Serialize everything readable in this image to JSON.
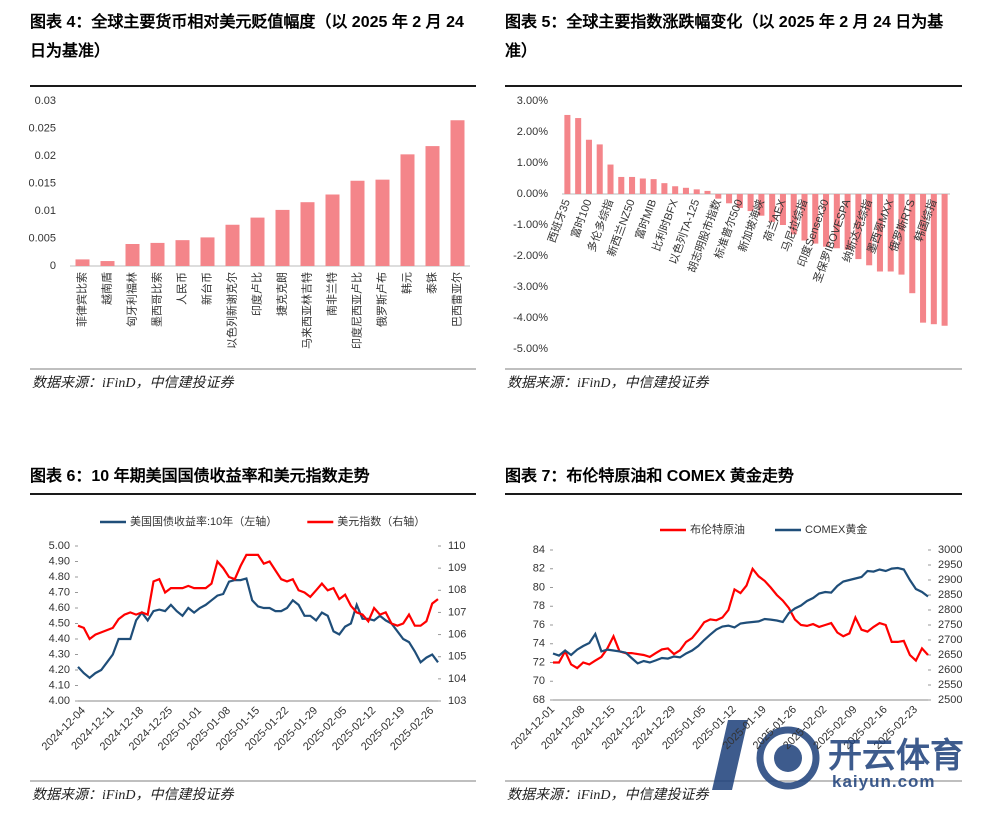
{
  "chart_data": [
    {
      "type": "bar",
      "title": "图表 4：全球主要货币相对美元贬值幅度（以 2025 年 2 月 24 日为基准）",
      "source": "数据来源：iFinD，中信建投证券",
      "categories": [
        "菲律宾比索",
        "越南盾",
        "匈牙利福林",
        "墨西哥比索",
        "人民币",
        "新台币",
        "以色列新谢克尔",
        "印度卢比",
        "捷克克朗",
        "马来西亚林吉特",
        "南非兰特",
        "印度尼西亚卢比",
        "俄罗斯卢布",
        "韩元",
        "泰铢",
        "巴西雷亚尔"
      ],
      "values": [
        0.0012,
        0.0009,
        0.004,
        0.0042,
        0.0047,
        0.0052,
        0.0075,
        0.0088,
        0.0102,
        0.0116,
        0.013,
        0.0155,
        0.0157,
        0.0203,
        0.0218,
        0.0265
      ],
      "color": "#f4858a",
      "ylim": [
        0,
        0.03
      ],
      "yticks": [
        0,
        0.005,
        0.01,
        0.015,
        0.02,
        0.025,
        0.03
      ]
    },
    {
      "type": "bar",
      "title": "图表 5：全球主要指数涨跌幅变化（以 2025 年 2 月 24 日为基准）",
      "source": "数据来源：iFinD，中信建投证券",
      "categories": [
        "西班牙35",
        null,
        "富时100",
        null,
        "多伦多综指",
        null,
        "新西兰NZ50",
        null,
        "富时MIB",
        null,
        "比利时BFX",
        null,
        "以色列TA-125",
        null,
        "胡志明股市指数",
        null,
        "标准普尔500",
        null,
        "新加坡海峡",
        null,
        "荷兰AEX",
        null,
        "马尼拉综指",
        null,
        "印度Sensex30",
        null,
        "圣保罗IBOVESPA",
        null,
        "纳斯达克综指",
        null,
        "墨西哥MXX",
        null,
        "俄罗斯RTS",
        null,
        "韩国综指",
        null
      ],
      "values": [
        2.55,
        2.45,
        1.75,
        1.6,
        0.95,
        0.55,
        0.55,
        0.5,
        0.48,
        0.35,
        0.25,
        0.2,
        0.15,
        0.1,
        -0.15,
        -0.3,
        -0.45,
        -0.55,
        -0.7,
        -0.9,
        -1.0,
        -1.3,
        -1.5,
        -1.6,
        -1.7,
        -1.75,
        -1.8,
        -2.1,
        -2.3,
        -2.5,
        -2.5,
        -2.6,
        -3.2,
        -4.15,
        -4.2,
        -4.25
      ],
      "color": "#f4858a",
      "ylim": [
        -5,
        3
      ],
      "yticks": [
        {
          "value": -5,
          "label": "-5.00%"
        },
        {
          "value": -4,
          "label": "-4.00%"
        },
        {
          "value": -3,
          "label": "-3.00%"
        },
        {
          "value": -2,
          "label": "-2.00%"
        },
        {
          "value": -1,
          "label": "-1.00%"
        },
        {
          "value": 0,
          "label": "0.00%"
        },
        {
          "value": 1,
          "label": "1.00%"
        },
        {
          "value": 2,
          "label": "2.00%"
        },
        {
          "value": 3,
          "label": "3.00%"
        }
      ]
    },
    {
      "type": "line",
      "title": "图表 6：10 年期美国国债收益率和美元指数走势",
      "source": "数据来源：iFinD，中信建投证券",
      "categories": [
        null,
        "2024-12-04",
        null,
        null,
        null,
        null,
        "2024-12-11",
        null,
        null,
        null,
        null,
        "2024-12-18",
        null,
        null,
        null,
        null,
        "2024-12-25",
        null,
        null,
        null,
        null,
        "2025-01-01",
        null,
        null,
        null,
        null,
        "2025-01-08",
        null,
        null,
        null,
        null,
        "2025-01-15",
        null,
        null,
        null,
        null,
        "2025-01-22",
        null,
        null,
        null,
        null,
        "2025-01-29",
        null,
        null,
        null,
        null,
        "2025-02-05",
        null,
        null,
        null,
        null,
        "2025-02-12",
        null,
        null,
        null,
        null,
        "2025-02-19",
        null,
        null,
        null,
        null,
        "2025-02-26",
        null
      ],
      "series": [
        {
          "name": "美国国债收益率:10年（左轴）",
          "color": "#1f4e79",
          "values": [
            4.22,
            4.18,
            4.15,
            4.18,
            4.2,
            4.25,
            4.3,
            4.4,
            4.4,
            4.4,
            4.52,
            4.57,
            4.52,
            4.58,
            4.59,
            4.58,
            4.62,
            4.58,
            4.55,
            4.6,
            4.57,
            4.6,
            4.62,
            4.65,
            4.68,
            4.69,
            4.77,
            4.78,
            4.78,
            4.79,
            4.65,
            4.61,
            4.6,
            4.6,
            4.58,
            4.58,
            4.6,
            4.65,
            4.62,
            4.55,
            4.55,
            4.52,
            4.57,
            4.55,
            4.45,
            4.43,
            4.48,
            4.5,
            4.62,
            4.53,
            4.53,
            4.52,
            4.55,
            4.52,
            4.5,
            4.45,
            4.4,
            4.38,
            4.32,
            4.25,
            4.28,
            4.3,
            4.25
          ]
        },
        {
          "name": "美元指数（右轴）",
          "color": "#ff0000",
          "axis": "y2",
          "values": [
            106.4,
            106.3,
            105.8,
            106.0,
            106.1,
            106.2,
            106.3,
            106.7,
            106.9,
            107.0,
            106.9,
            107.0,
            106.9,
            108.4,
            108.5,
            107.9,
            108.1,
            108.1,
            108.1,
            108.2,
            108.1,
            108.1,
            108.1,
            108.3,
            109.3,
            109.0,
            108.6,
            108.5,
            109.1,
            109.6,
            109.6,
            109.6,
            109.2,
            109.3,
            108.9,
            108.5,
            108.4,
            108.5,
            108.0,
            107.9,
            107.7,
            108.0,
            108.3,
            108.0,
            108.1,
            107.6,
            107.8,
            107.3,
            107.0,
            106.9,
            106.6,
            107.2,
            106.9,
            107.0,
            106.5,
            106.4,
            106.5,
            106.9,
            106.4,
            106.4,
            106.6,
            107.4,
            107.6
          ]
        }
      ],
      "ylim": [
        4.0,
        5.0
      ],
      "yticks": [
        {
          "value": 4.0,
          "label": "4.00"
        },
        {
          "value": 4.1,
          "label": "4.10"
        },
        {
          "value": 4.2,
          "label": "4.20"
        },
        {
          "value": 4.3,
          "label": "4.30"
        },
        {
          "value": 4.4,
          "label": "4.40"
        },
        {
          "value": 4.5,
          "label": "4.50"
        },
        {
          "value": 4.6,
          "label": "4.60"
        },
        {
          "value": 4.7,
          "label": "4.70"
        },
        {
          "value": 4.8,
          "label": "4.80"
        },
        {
          "value": 4.9,
          "label": "4.90"
        },
        {
          "value": 5.0,
          "label": "5.00"
        }
      ],
      "y2lim": [
        103,
        110
      ],
      "y2ticks": [
        103,
        104,
        105,
        106,
        107,
        108,
        109,
        110
      ]
    },
    {
      "type": "line",
      "title": "图表 7：布伦特原油和 COMEX 黄金走势",
      "source": "数据来源：iFinD，中信建投证券",
      "categories": [
        "2024-12-01",
        null,
        null,
        null,
        null,
        "2024-12-08",
        null,
        null,
        null,
        null,
        "2024-12-15",
        null,
        null,
        null,
        null,
        "2024-12-22",
        null,
        null,
        null,
        null,
        "2024-12-29",
        null,
        null,
        null,
        null,
        "2025-01-05",
        null,
        null,
        null,
        null,
        "2025-01-12",
        null,
        null,
        null,
        null,
        "2025-01-19",
        null,
        null,
        null,
        null,
        "2025-01-26",
        null,
        null,
        null,
        null,
        "2025-02-02",
        null,
        null,
        null,
        null,
        "2025-02-09",
        null,
        null,
        null,
        null,
        "2025-02-16",
        null,
        null,
        null,
        null,
        "2025-02-23",
        null,
        null
      ],
      "series": [
        {
          "name": "布伦特原油",
          "color": "#ff0000",
          "values": [
            72.0,
            72.0,
            73.2,
            71.8,
            71.4,
            72.0,
            71.8,
            72.2,
            72.6,
            73.5,
            74.8,
            73.2,
            73.0,
            73.0,
            72.9,
            72.8,
            72.6,
            73.0,
            73.4,
            73.5,
            72.9,
            73.3,
            74.2,
            74.6,
            75.4,
            76.3,
            76.6,
            76.5,
            76.8,
            77.6,
            79.8,
            79.4,
            80.2,
            82.0,
            81.2,
            80.7,
            80.0,
            79.2,
            78.6,
            77.8,
            76.6,
            76.0,
            75.9,
            76.1,
            75.8,
            76.0,
            76.2,
            75.2,
            74.8,
            75.1,
            76.8,
            75.5,
            75.3,
            75.8,
            76.2,
            76.0,
            74.2,
            74.2,
            74.3,
            72.8,
            72.2,
            73.5,
            72.8
          ]
        },
        {
          "name": "COMEX黄金",
          "color": "#1f4e79",
          "axis": "y2",
          "values": [
            2655,
            2648,
            2665,
            2650,
            2668,
            2680,
            2690,
            2720,
            2662,
            2668,
            2665,
            2662,
            2658,
            2640,
            2622,
            2630,
            2625,
            2632,
            2640,
            2638,
            2645,
            2642,
            2655,
            2665,
            2680,
            2700,
            2718,
            2735,
            2745,
            2748,
            2742,
            2755,
            2758,
            2760,
            2762,
            2770,
            2768,
            2765,
            2760,
            2790,
            2805,
            2815,
            2830,
            2840,
            2855,
            2860,
            2858,
            2880,
            2895,
            2900,
            2905,
            2910,
            2930,
            2928,
            2935,
            2930,
            2938,
            2940,
            2935,
            2900,
            2870,
            2860,
            2845
          ]
        }
      ],
      "ylim": [
        68,
        84
      ],
      "yticks": [
        68,
        70,
        72,
        74,
        76,
        78,
        80,
        82,
        84
      ],
      "y2lim": [
        2500,
        3000
      ],
      "y2ticks": [
        2500,
        2550,
        2600,
        2650,
        2700,
        2750,
        2800,
        2850,
        2900,
        2950,
        3000
      ]
    }
  ],
  "watermark": {
    "brand": "开云体育",
    "site": "kaiyun.com"
  }
}
